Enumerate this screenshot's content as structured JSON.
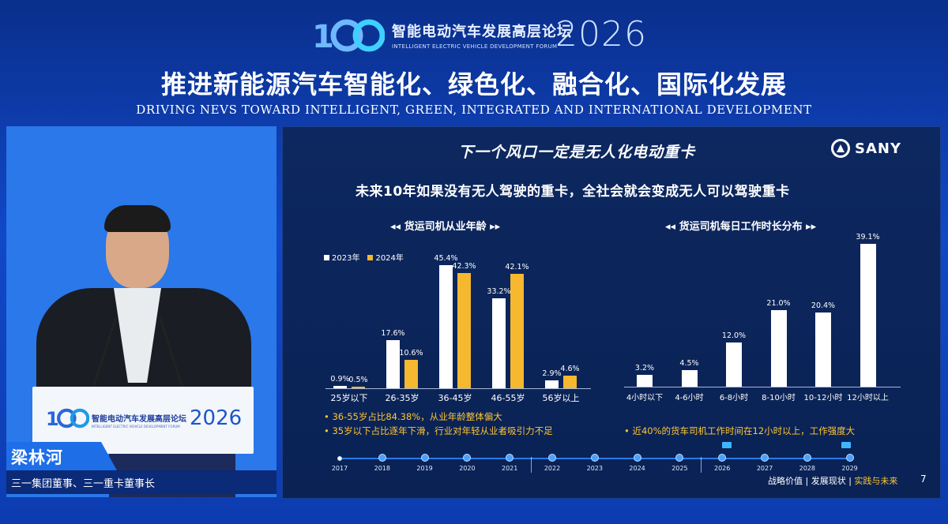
{
  "header": {
    "forum_cn": "智能电动汽车发展高层论坛",
    "forum_en": "INTELLIGENT ELECTRIC VEHICLE DEVELOPMENT FORUM",
    "year": "2026",
    "title_cn": "推进新能源汽车智能化、绿色化、融合化、国际化发展",
    "title_en": "DRIVING NEVS TOWARD INTELLIGENT, GREEN, INTEGRATED AND INTERNATIONAL DEVELOPMENT"
  },
  "speaker": {
    "name": "梁林河",
    "role": "三一集团董事、三一重卡董事长",
    "podium_cn": "智能电动汽车发展高层论坛",
    "podium_en": "INTELLIGENT ELECTRIC VEHICLE DEVELOPMENT FORUM",
    "podium_year": "2026"
  },
  "slide": {
    "title": "下一个风口一定是无人化电动重卡",
    "brand": "SANY",
    "subtitle": "未来10年如果没有无人驾驶的重卡，全社会就会变成无人可以驾驶重卡",
    "left_title": "◂◂  货运司机从业年龄  ▸▸",
    "right_title": "◂◂  货运司机每日工作时长分布  ▸▸",
    "notes_left": [
      "36-55岁占比84.38%，从业年龄整体偏大",
      "35岁以下占比逐年下滑，行业对年轻从业者吸引力不足"
    ],
    "notes_right": [
      "近40%的货车司机工作时间在12小时以上，工作强度大"
    ],
    "timeline": [
      "2017",
      "2018",
      "2019",
      "2020",
      "2021",
      "2022",
      "2023",
      "2024",
      "2025",
      "2026",
      "2027",
      "2028",
      "2029"
    ],
    "footer_a": "战略价值 | 发展现状 | ",
    "footer_b": "实践与未来",
    "page": "7"
  },
  "colors": {
    "white_bar": "#ffffff",
    "gold_bar": "#f5b82e",
    "accent": "#ffc533"
  },
  "chart_data": [
    {
      "type": "bar",
      "title": "货运司机从业年龄",
      "categories": [
        "25岁以下",
        "26-35岁",
        "36-45岁",
        "46-55岁",
        "56岁以上"
      ],
      "series": [
        {
          "name": "2023年",
          "values": [
            0.9,
            17.6,
            45.4,
            33.2,
            2.9
          ],
          "labels": [
            "0.9%",
            "17.6%",
            "45.4%",
            "33.2%",
            "2.9%"
          ]
        },
        {
          "name": "2024年",
          "values": [
            0.5,
            10.6,
            42.3,
            42.1,
            4.6
          ],
          "labels": [
            "0.5%",
            "10.6%",
            "42.3%",
            "42.1%",
            "4.6%"
          ]
        }
      ],
      "ylim": [
        0,
        50
      ],
      "legend": "top-left"
    },
    {
      "type": "bar",
      "title": "货运司机每日工作时长分布",
      "categories": [
        "4小时以下",
        "4-6小时",
        "6-8小时",
        "8-10小时",
        "10-12小时",
        "12小时以上"
      ],
      "values": [
        3.2,
        4.5,
        12.0,
        21.0,
        20.4,
        39.1
      ],
      "labels": [
        "3.2%",
        "4.5%",
        "12.0%",
        "21.0%",
        "20.4%",
        "39.1%"
      ],
      "ylim": [
        0,
        40
      ]
    }
  ]
}
